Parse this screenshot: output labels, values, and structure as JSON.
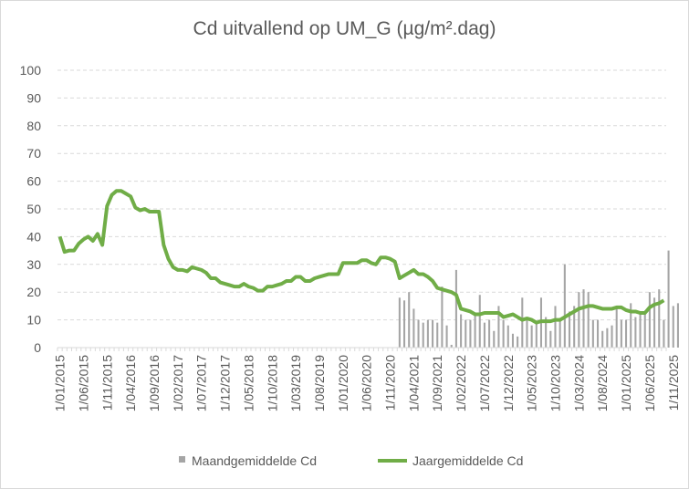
{
  "chart_data": {
    "type": "bar",
    "title": "Cd uitvallend op UM_G (µg/m².dag)",
    "xlabel": "",
    "ylabel": "",
    "ylim": [
      0,
      100
    ],
    "yticks": [
      0,
      10,
      20,
      30,
      40,
      50,
      60,
      70,
      80,
      90,
      100
    ],
    "grid": true,
    "legend_position": "bottom",
    "x_start": "2015-01",
    "x_tick_labels": [
      "1/01/2015",
      "1/06/2015",
      "1/11/2015",
      "1/04/2016",
      "1/09/2016",
      "1/02/2017",
      "1/07/2017",
      "1/12/2017",
      "1/05/2018",
      "1/10/2018",
      "1/03/2019",
      "1/08/2019",
      "1/01/2020",
      "1/06/2020",
      "1/11/2020",
      "1/04/2021",
      "1/09/2021",
      "1/02/2022",
      "1/07/2022",
      "1/12/2022",
      "1/05/2023",
      "1/10/2023",
      "1/03/2024",
      "1/08/2024",
      "1/01/2025",
      "1/06/2025",
      "1/11/2025"
    ],
    "series": [
      {
        "name": "Maandgemiddelde Cd",
        "kind": "bar",
        "color": "#a5a5a5",
        "start": "2021-01",
        "values": [
          18,
          17,
          20,
          14,
          10,
          9,
          10,
          10,
          9,
          22,
          8,
          1,
          28,
          12,
          10,
          10,
          12,
          19,
          9,
          10,
          6,
          15,
          10,
          8,
          5,
          4,
          18,
          10,
          8,
          9,
          18,
          11,
          6,
          15,
          10,
          30,
          13,
          15,
          20,
          21,
          20,
          10,
          10,
          6,
          7,
          8,
          15,
          10,
          10,
          16,
          11,
          12,
          13,
          20,
          18,
          21,
          10,
          35,
          15,
          16
        ]
      },
      {
        "name": "Jaargemiddelde Cd",
        "kind": "line",
        "color": "#70ad47",
        "start": "2015-01",
        "values": [
          40,
          34.5,
          35,
          35,
          37.5,
          39,
          40,
          38.5,
          41,
          37,
          51,
          55,
          56.5,
          56.5,
          55.5,
          54.5,
          50.5,
          49.5,
          50,
          49,
          49,
          49,
          37,
          32,
          29,
          28,
          28,
          27.5,
          29,
          28.5,
          28,
          27,
          25,
          25,
          23.5,
          23,
          22.5,
          22,
          22,
          23,
          22,
          21.5,
          20.5,
          20.5,
          22,
          22,
          22.5,
          23,
          24,
          24,
          25.5,
          25.5,
          24,
          24,
          25,
          25.5,
          26,
          26.5,
          26.5,
          26.5,
          30.5,
          30.5,
          30.5,
          30.5,
          31.5,
          31.5,
          30.5,
          30,
          32.5,
          32.5,
          32,
          31,
          25,
          26,
          27,
          28,
          26.5,
          26.5,
          25.5,
          24,
          21.5,
          21,
          20.5,
          20,
          19,
          14,
          13.5,
          13,
          12,
          12,
          12.5,
          12.5,
          12.5,
          12.5,
          11,
          11.5,
          12,
          11,
          10,
          10.5,
          10,
          9,
          9.5,
          9.5,
          9.5,
          10,
          10,
          11,
          12,
          13,
          14,
          14.5,
          15,
          15,
          14.5,
          14,
          14,
          14,
          14.5,
          14.5,
          13.5,
          13,
          13,
          12.5,
          12.5,
          14.5,
          15.5,
          16,
          17
        ]
      }
    ]
  }
}
